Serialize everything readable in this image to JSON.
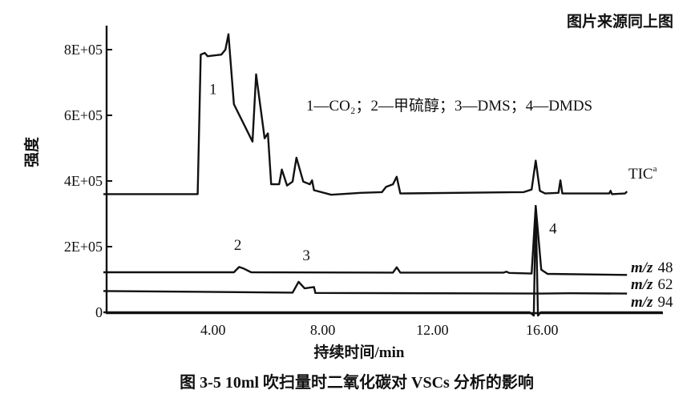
{
  "header": {
    "source_note": "图片来源同上图"
  },
  "caption": "图 3-5   10ml 吹扫量时二氧化碳对 VSCs 分析的影响",
  "chart_data": {
    "type": "line",
    "title": "",
    "xlabel": "持续时间/min",
    "ylabel": "强度",
    "xlim": [
      0,
      20.4
    ],
    "ylim": [
      0,
      880000
    ],
    "x_ticks": [
      4,
      8,
      12,
      16
    ],
    "x_tick_labels": [
      "4.00",
      "8.00",
      "12.00",
      "16.00"
    ],
    "y_ticks": [
      0,
      200000,
      400000,
      600000,
      800000
    ],
    "y_tick_labels": [
      "0",
      "2E+05",
      "4E+05",
      "6E+05",
      "8E+05"
    ],
    "grid": false,
    "legend_text": "1—CO₂；2—甲硫醇；3—DMS；4—DMDS",
    "peak_labels": [
      {
        "label": "1",
        "x": 4.0,
        "y": 665000
      },
      {
        "label": "2",
        "x": 4.9,
        "y": 190000
      },
      {
        "label": "3",
        "x": 7.4,
        "y": 158000
      },
      {
        "label": "4",
        "x": 16.4,
        "y": 240000
      }
    ],
    "series": [
      {
        "name": "TIC",
        "label_main": "TIC",
        "label_sup": "a",
        "points": [
          [
            0,
            360000
          ],
          [
            3.44,
            360000
          ],
          [
            3.55,
            785000
          ],
          [
            3.7,
            790000
          ],
          [
            3.8,
            780000
          ],
          [
            4.3,
            785000
          ],
          [
            4.45,
            800000
          ],
          [
            4.56,
            847000
          ],
          [
            4.76,
            634000
          ],
          [
            5.44,
            520000
          ],
          [
            5.57,
            725000
          ],
          [
            5.88,
            530000
          ],
          [
            6.0,
            545000
          ],
          [
            6.12,
            390000
          ],
          [
            6.41,
            390000
          ],
          [
            6.51,
            435000
          ],
          [
            6.7,
            386000
          ],
          [
            6.9,
            398000
          ],
          [
            7.04,
            471000
          ],
          [
            7.29,
            398000
          ],
          [
            7.53,
            390000
          ],
          [
            7.61,
            402000
          ],
          [
            7.68,
            372000
          ],
          [
            8.31,
            358000
          ],
          [
            9.39,
            364000
          ],
          [
            10.16,
            366000
          ],
          [
            10.31,
            382000
          ],
          [
            10.56,
            390000
          ],
          [
            10.7,
            413000
          ],
          [
            10.83,
            362000
          ],
          [
            15.33,
            366000
          ],
          [
            15.62,
            374000
          ],
          [
            15.77,
            462000
          ],
          [
            15.92,
            370000
          ],
          [
            16.11,
            362000
          ],
          [
            16.6,
            364000
          ],
          [
            16.67,
            402000
          ],
          [
            16.74,
            362000
          ],
          [
            18.45,
            362000
          ],
          [
            18.5,
            370000
          ],
          [
            18.55,
            360000
          ],
          [
            19.03,
            362000
          ],
          [
            19.1,
            368000
          ]
        ]
      },
      {
        "name": "m/z 48",
        "label_mz": "m/z",
        "label_num": "48",
        "points": [
          [
            0,
            122000
          ],
          [
            4.76,
            122000
          ],
          [
            4.95,
            138000
          ],
          [
            5.1,
            134000
          ],
          [
            5.39,
            122000
          ],
          [
            10.56,
            121000
          ],
          [
            10.7,
            137000
          ],
          [
            10.83,
            121000
          ],
          [
            14.6,
            121000
          ],
          [
            14.7,
            124000
          ],
          [
            14.8,
            120000
          ],
          [
            15.62,
            118000
          ],
          [
            15.77,
            324000
          ],
          [
            15.97,
            130000
          ],
          [
            16.2,
            117000
          ],
          [
            19.1,
            114000
          ]
        ]
      },
      {
        "name": "m/z 62",
        "label_mz": "m/z",
        "label_num": "62",
        "points": [
          [
            0,
            65000
          ],
          [
            6.9,
            60000
          ],
          [
            7.12,
            93000
          ],
          [
            7.34,
            73000
          ],
          [
            7.68,
            77000
          ],
          [
            7.73,
            59000
          ],
          [
            16.0,
            57000
          ],
          [
            17.0,
            58000
          ],
          [
            19.1,
            57000
          ]
        ]
      },
      {
        "name": "m/z 94",
        "label_mz": "m/z",
        "label_num": "94",
        "points": [
          [
            0,
            0
          ],
          [
            15.55,
            0
          ],
          [
            15.7,
            -10000
          ],
          [
            15.77,
            324000
          ],
          [
            15.85,
            -10000
          ],
          [
            15.95,
            0
          ],
          [
            20.4,
            0
          ]
        ]
      }
    ]
  },
  "colors": {
    "ink": "#111111",
    "background": "#ffffff"
  }
}
